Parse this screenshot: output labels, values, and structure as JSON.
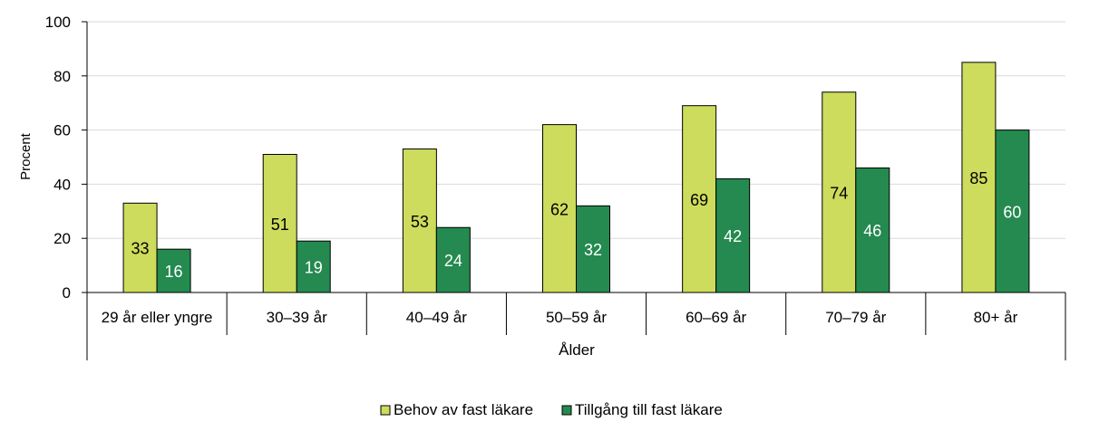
{
  "chart_data": {
    "type": "bar",
    "title": "",
    "xlabel": "Ålder",
    "ylabel": "Procent",
    "ylim": [
      0,
      100
    ],
    "yticks": [
      0,
      20,
      40,
      60,
      80,
      100
    ],
    "grid": true,
    "legend_position": "bottom",
    "categories": [
      "29 år eller yngre",
      "30–39 år",
      "40–49 år",
      "50–59 år",
      "60–69 år",
      "70–79 år",
      "80+ år"
    ],
    "series": [
      {
        "name": "Behov av fast läkare",
        "color": "#cddc5c",
        "label_color": "#000000",
        "values": [
          33,
          51,
          53,
          62,
          69,
          74,
          85
        ]
      },
      {
        "name": "Tillgång till fast läkare",
        "color": "#248a4f",
        "label_color": "#ffffff",
        "values": [
          16,
          19,
          24,
          32,
          42,
          46,
          60
        ]
      }
    ]
  }
}
